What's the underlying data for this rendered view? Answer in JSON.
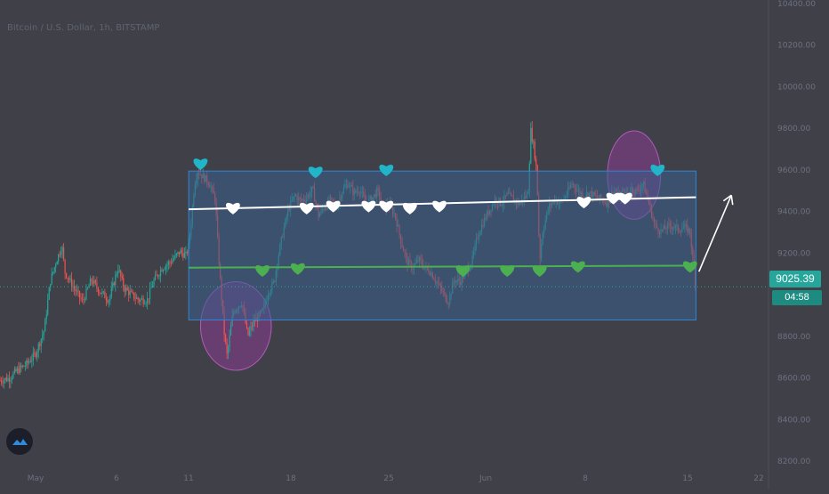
{
  "colors": {
    "background": "#3f4048",
    "channel_fill": "#3b5f8c",
    "channel_border": "#2f86d6",
    "midline": "#ffffff",
    "support": "#4caf50",
    "candle_up": "#26a69a",
    "candle_down": "#ef5350",
    "ellipse": "#8a3a8f",
    "heart_top": "#20b5c9",
    "heart_mid": "#ffffff",
    "heart_low": "#4caf50",
    "price_tag": "#26a69a"
  },
  "header": {
    "symbol": "Bitcoin / U.S. Dollar, 1h, BITSTAMP"
  },
  "price_tag": {
    "price": "9025.39",
    "countdown": "04:58"
  },
  "chart_data": {
    "type": "line",
    "title": "Bitcoin / U.S. Dollar, 1h, BITSTAMP",
    "xlabel": "",
    "ylabel": "",
    "y_axis_side": "right",
    "y_tick_labels": [
      "10400.00",
      "10200.00",
      "10000.00",
      "9800.00",
      "9600.00",
      "9400.00",
      "9200.00",
      "9000.00",
      "8800.00",
      "8600.00",
      "8400.00",
      "8200.00"
    ],
    "x_tick_labels": [
      "May",
      "6",
      "11",
      "18",
      "25",
      "Jun",
      "8",
      "15",
      "22"
    ],
    "ylim": [
      8150,
      10450
    ],
    "grid": false,
    "price_series": [
      [
        0,
        8560
      ],
      [
        3,
        8570
      ],
      [
        6,
        8610
      ],
      [
        9,
        8640
      ],
      [
        12,
        8690
      ],
      [
        15,
        8810
      ],
      [
        17,
        9050
      ],
      [
        19,
        9150
      ],
      [
        21,
        9230
      ],
      [
        22,
        9100
      ],
      [
        25,
        9020
      ],
      [
        28,
        8950
      ],
      [
        31,
        9060
      ],
      [
        34,
        9000
      ],
      [
        37,
        8960
      ],
      [
        40,
        9120
      ],
      [
        42,
        9020
      ],
      [
        45,
        8980
      ],
      [
        47,
        8960
      ],
      [
        50,
        8960
      ],
      [
        52,
        9050
      ],
      [
        55,
        9120
      ],
      [
        58,
        9150
      ],
      [
        61,
        9200
      ],
      [
        63,
        9180
      ],
      [
        64,
        9230
      ],
      [
        65,
        9380
      ],
      [
        66,
        9540
      ],
      [
        67,
        9600
      ],
      [
        69,
        9570
      ],
      [
        71,
        9540
      ],
      [
        73,
        9460
      ],
      [
        74,
        9200
      ],
      [
        76,
        8800
      ],
      [
        77,
        8680
      ],
      [
        79,
        8900
      ],
      [
        82,
        8950
      ],
      [
        84,
        8780
      ],
      [
        86,
        8850
      ],
      [
        89,
        8900
      ],
      [
        91,
        9000
      ],
      [
        93,
        9050
      ],
      [
        94,
        9150
      ],
      [
        96,
        9300
      ],
      [
        98,
        9420
      ],
      [
        100,
        9480
      ],
      [
        102,
        9450
      ],
      [
        104,
        9470
      ],
      [
        106,
        9510
      ],
      [
        108,
        9380
      ],
      [
        110,
        9420
      ],
      [
        112,
        9450
      ],
      [
        114,
        9420
      ],
      [
        116,
        9500
      ],
      [
        118,
        9540
      ],
      [
        120,
        9490
      ],
      [
        122,
        9510
      ],
      [
        124,
        9440
      ],
      [
        126,
        9460
      ],
      [
        128,
        9500
      ],
      [
        130,
        9420
      ],
      [
        132,
        9430
      ],
      [
        134,
        9380
      ],
      [
        136,
        9250
      ],
      [
        138,
        9150
      ],
      [
        140,
        9120
      ],
      [
        142,
        9160
      ],
      [
        144,
        9120
      ],
      [
        146,
        9100
      ],
      [
        148,
        9050
      ],
      [
        150,
        9000
      ],
      [
        152,
        8950
      ],
      [
        154,
        9060
      ],
      [
        156,
        9050
      ],
      [
        158,
        9100
      ],
      [
        160,
        9150
      ],
      [
        162,
        9280
      ],
      [
        164,
        9350
      ],
      [
        166,
        9410
      ],
      [
        168,
        9460
      ],
      [
        170,
        9440
      ],
      [
        172,
        9480
      ],
      [
        174,
        9460
      ],
      [
        176,
        9440
      ],
      [
        178,
        9470
      ],
      [
        179,
        9480
      ],
      [
        180,
        9800
      ],
      [
        181,
        9720
      ],
      [
        182,
        9600
      ],
      [
        183,
        9150
      ],
      [
        184,
        9300
      ],
      [
        186,
        9420
      ],
      [
        188,
        9460
      ],
      [
        190,
        9440
      ],
      [
        192,
        9480
      ],
      [
        194,
        9540
      ],
      [
        196,
        9500
      ],
      [
        198,
        9480
      ],
      [
        200,
        9490
      ],
      [
        202,
        9470
      ],
      [
        204,
        9460
      ],
      [
        206,
        9440
      ],
      [
        208,
        9500
      ],
      [
        210,
        9470
      ],
      [
        212,
        9480
      ],
      [
        214,
        9510
      ],
      [
        216,
        9500
      ],
      [
        218,
        9540
      ],
      [
        220,
        9440
      ],
      [
        222,
        9330
      ],
      [
        224,
        9300
      ],
      [
        226,
        9320
      ],
      [
        228,
        9330
      ],
      [
        230,
        9310
      ],
      [
        232,
        9320
      ],
      [
        234,
        9300
      ],
      [
        235,
        9150
      ],
      [
        236,
        9025
      ]
    ],
    "channel": {
      "x_start": 64,
      "x_end": 236,
      "top": 9600,
      "bottom": 8860
    },
    "midline": {
      "x_start": 64,
      "x_end": 236,
      "y_start": 9410,
      "y_end": 9470
    },
    "support": {
      "x_start": 64,
      "x_end": 236,
      "y_start": 9120,
      "y_end": 9130
    },
    "last_price": 9025.39,
    "hearts": [
      {
        "x": 68,
        "y": 9640,
        "kind": "top"
      },
      {
        "x": 107,
        "y": 9600,
        "kind": "top"
      },
      {
        "x": 131,
        "y": 9610,
        "kind": "top"
      },
      {
        "x": 223,
        "y": 9610,
        "kind": "top"
      },
      {
        "x": 79,
        "y": 9420,
        "kind": "mid"
      },
      {
        "x": 104,
        "y": 9420,
        "kind": "mid"
      },
      {
        "x": 113,
        "y": 9430,
        "kind": "mid"
      },
      {
        "x": 125,
        "y": 9430,
        "kind": "mid"
      },
      {
        "x": 131,
        "y": 9430,
        "kind": "mid"
      },
      {
        "x": 139,
        "y": 9420,
        "kind": "mid"
      },
      {
        "x": 149,
        "y": 9430,
        "kind": "mid"
      },
      {
        "x": 198,
        "y": 9450,
        "kind": "mid"
      },
      {
        "x": 208,
        "y": 9470,
        "kind": "mid"
      },
      {
        "x": 212,
        "y": 9470,
        "kind": "mid"
      },
      {
        "x": 89,
        "y": 9110,
        "kind": "low"
      },
      {
        "x": 101,
        "y": 9120,
        "kind": "low"
      },
      {
        "x": 157,
        "y": 9110,
        "kind": "low"
      },
      {
        "x": 172,
        "y": 9110,
        "kind": "low"
      },
      {
        "x": 183,
        "y": 9110,
        "kind": "low"
      },
      {
        "x": 196,
        "y": 9130,
        "kind": "low"
      },
      {
        "x": 234,
        "y": 9130,
        "kind": "low"
      }
    ],
    "ellipses": [
      {
        "x": 80,
        "y": 8830,
        "rx": 12,
        "ry": 220
      },
      {
        "x": 215,
        "y": 9580,
        "rx": 9,
        "ry": 220
      }
    ],
    "arrow": {
      "from": [
        237,
        9100
      ],
      "to": [
        248,
        9480
      ]
    }
  }
}
